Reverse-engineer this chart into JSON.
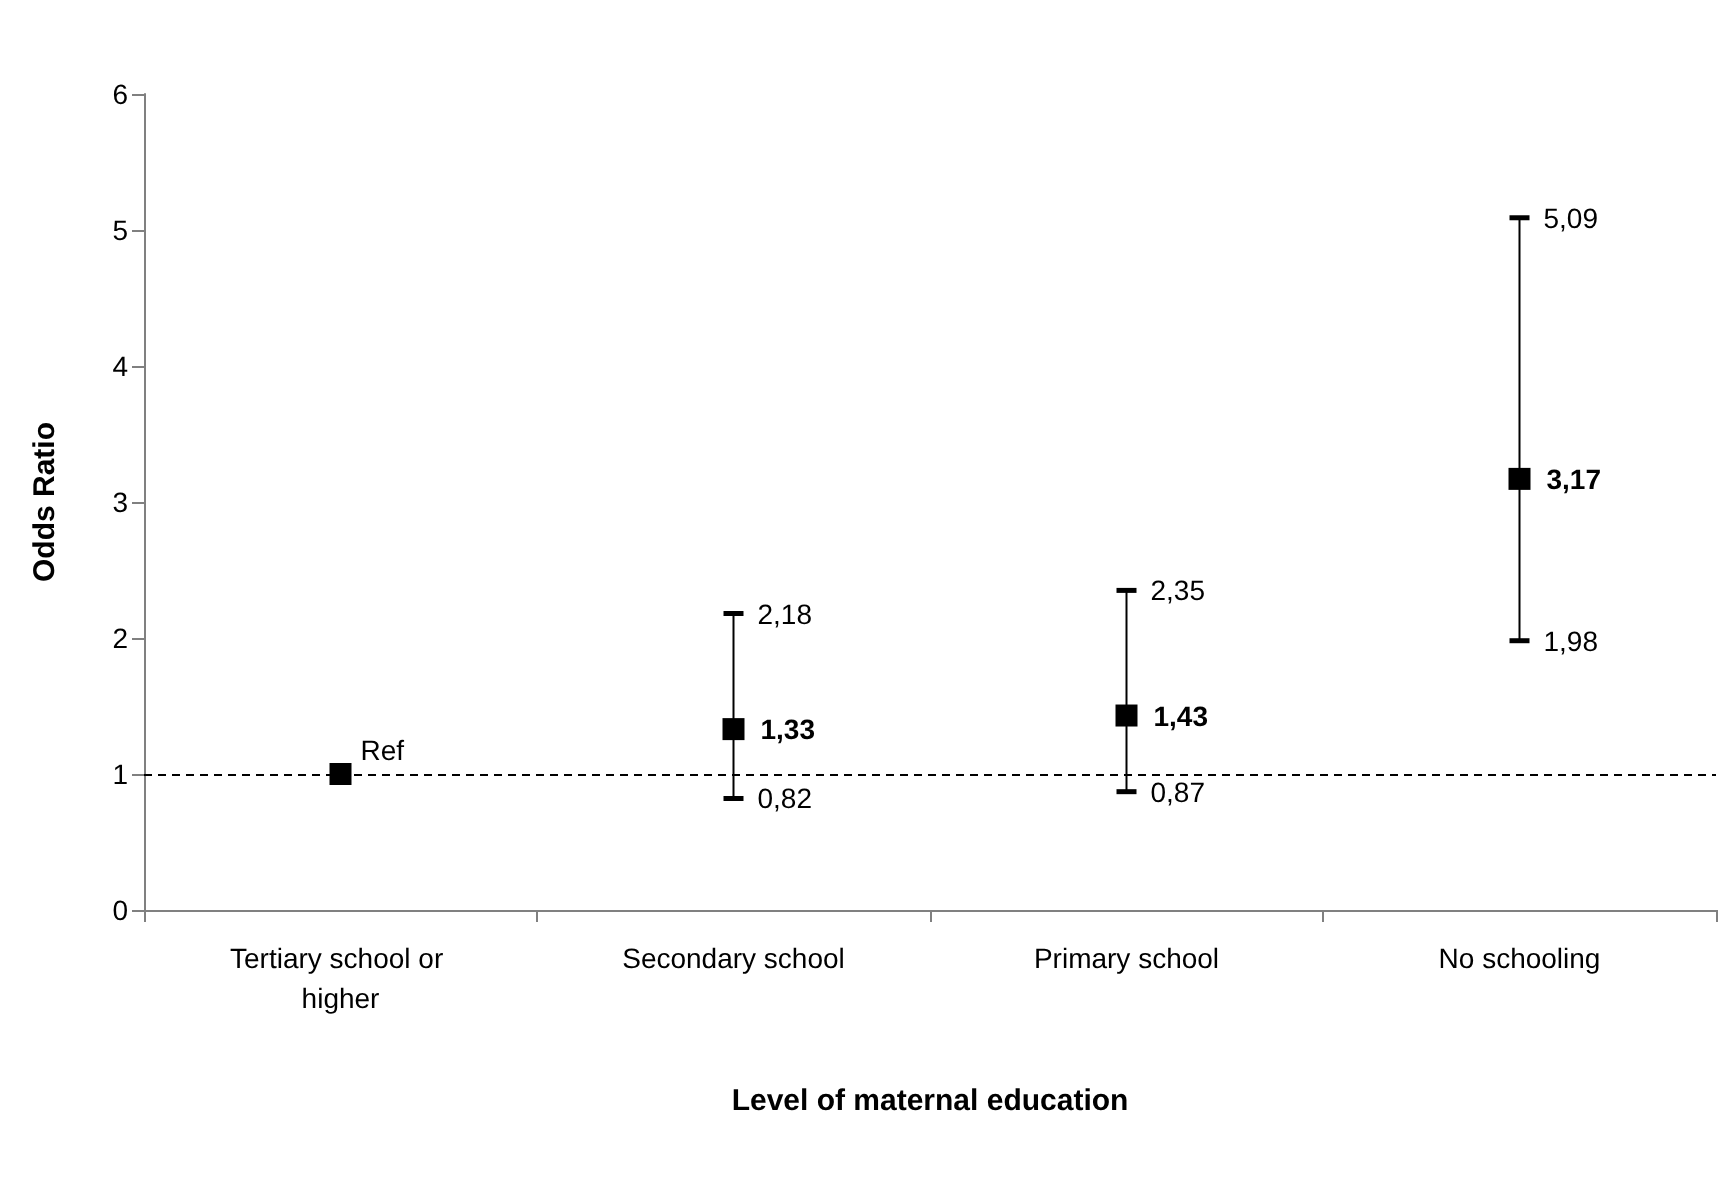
{
  "chart_data": {
    "type": "scatter",
    "xlabel": "Level of maternal education",
    "ylabel": "Odds Ratio",
    "categories": [
      "Tertiary school or higher",
      "Secondary school",
      "Primary school",
      "No schooling"
    ],
    "values": [
      1,
      1.33,
      1.43,
      3.17
    ],
    "errors": [
      null,
      [
        0.82,
        2.18
      ],
      [
        0.87,
        2.35
      ],
      [
        1.98,
        5.09
      ]
    ],
    "value_labels": [
      null,
      "1,33",
      "1,43",
      "3,17"
    ],
    "color": "#000000",
    "marker": "square",
    "ylim": [
      0,
      6
    ],
    "yticks": [
      0,
      1,
      2,
      3,
      4,
      5,
      6
    ],
    "grid": false,
    "ref_lines": [
      {
        "axis": "y",
        "value": 1,
        "line_style": "dashed",
        "color": "#000000"
      }
    ],
    "annotations": [
      {
        "text": "Ref",
        "x": "Tertiary school or higher",
        "y": 1
      },
      {
        "text": "2,18",
        "x": "Secondary school",
        "y": 2.18
      },
      {
        "text": "0,82",
        "x": "Secondary school",
        "y": 0.82
      },
      {
        "text": "2,35",
        "x": "Primary school",
        "y": 2.35
      },
      {
        "text": "0,87",
        "x": "Primary school",
        "y": 0.87
      },
      {
        "text": "5,09",
        "x": "No schooling",
        "y": 5.09
      },
      {
        "text": "1,98",
        "x": "No schooling",
        "y": 1.98
      }
    ]
  }
}
